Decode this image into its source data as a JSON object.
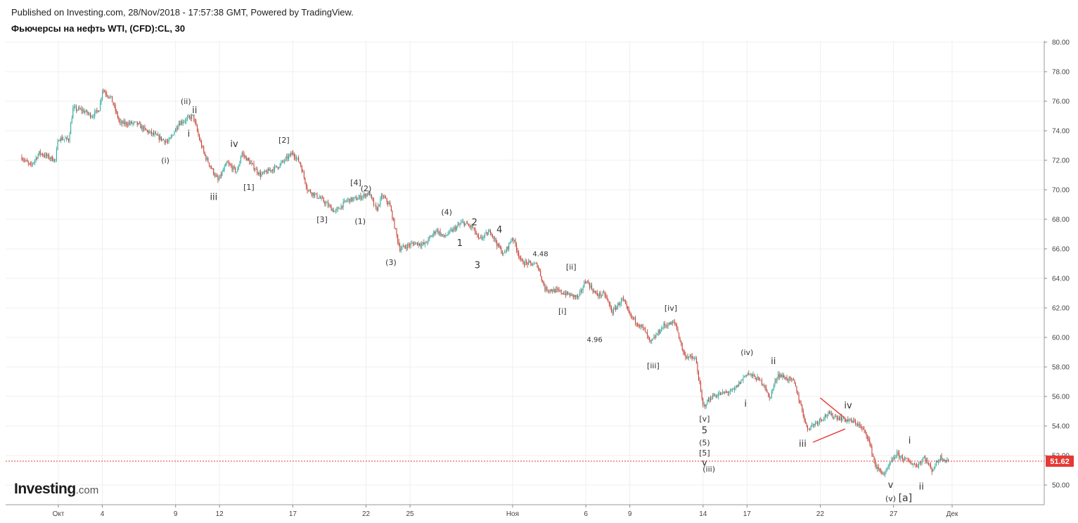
{
  "header": {
    "published": "Published on Investing.com, 28/Nov/2018 - 17:57:38 GMT, Powered by TradingView.",
    "symbol": "Фьючерсы на нефть WTI, (CFD):CL, 30"
  },
  "logo": {
    "main": "Investing",
    "suffix": ".com"
  },
  "colors": {
    "up": "#26a69a",
    "down": "#c0392b",
    "last_price": "#e53935",
    "grid": "#efefef",
    "annotation": "#e53935"
  },
  "chart_data": {
    "type": "candlestick",
    "timeframe": "30",
    "grid": true,
    "ylim": [
      49,
      80.5
    ],
    "y_ticks": [
      "50.00",
      "52.00",
      "54.00",
      "56.00",
      "58.00",
      "60.00",
      "62.00",
      "64.00",
      "66.00",
      "68.00",
      "70.00",
      "72.00",
      "74.00",
      "76.00",
      "78.00",
      "80.00"
    ],
    "x_ticks": [
      {
        "label": "Окт",
        "day": 1
      },
      {
        "label": "4",
        "day": 4
      },
      {
        "label": "9",
        "day": 9
      },
      {
        "label": "12",
        "day": 12
      },
      {
        "label": "17",
        "day": 17
      },
      {
        "label": "22",
        "day": 22
      },
      {
        "label": "25",
        "day": 25
      },
      {
        "label": "Ноя",
        "day": 32
      },
      {
        "label": "6",
        "day": 37
      },
      {
        "label": "9",
        "day": 40
      },
      {
        "label": "14",
        "day": 45
      },
      {
        "label": "17",
        "day": 48
      },
      {
        "label": "22",
        "day": 53
      },
      {
        "label": "27",
        "day": 58
      },
      {
        "label": "Дек",
        "day": 62
      }
    ],
    "last_price": "51.62",
    "last_price_value": 51.62,
    "price_path": [
      {
        "day": -1.5,
        "price": 72.2
      },
      {
        "day": -0.9,
        "price": 71.6
      },
      {
        "day": -0.3,
        "price": 72.5
      },
      {
        "day": 0.8,
        "price": 72.0
      },
      {
        "day": 1.0,
        "price": 73.5
      },
      {
        "day": 1.7,
        "price": 73.4
      },
      {
        "day": 2.0,
        "price": 75.5
      },
      {
        "day": 2.6,
        "price": 75.4
      },
      {
        "day": 3.3,
        "price": 75.0
      },
      {
        "day": 3.8,
        "price": 75.5
      },
      {
        "day": 4.0,
        "price": 76.8
      },
      {
        "day": 4.6,
        "price": 76.2
      },
      {
        "day": 5.2,
        "price": 74.5
      },
      {
        "day": 6.3,
        "price": 74.5
      },
      {
        "day": 7.0,
        "price": 74.0
      },
      {
        "day": 8.5,
        "price": 73.2
      },
      {
        "day": 9.2,
        "price": 74.5
      },
      {
        "day": 10.2,
        "price": 75.0
      },
      {
        "day": 10.6,
        "price": 73.5
      },
      {
        "day": 11.0,
        "price": 72.3
      },
      {
        "day": 11.9,
        "price": 70.6
      },
      {
        "day": 12.5,
        "price": 71.8
      },
      {
        "day": 13.2,
        "price": 71.2
      },
      {
        "day": 13.5,
        "price": 72.5
      },
      {
        "day": 14.8,
        "price": 71.0
      },
      {
        "day": 16.0,
        "price": 71.6
      },
      {
        "day": 17.0,
        "price": 72.5
      },
      {
        "day": 17.5,
        "price": 71.8
      },
      {
        "day": 18.0,
        "price": 70.0
      },
      {
        "day": 18.9,
        "price": 69.4
      },
      {
        "day": 19.9,
        "price": 68.5
      },
      {
        "day": 20.7,
        "price": 69.3
      },
      {
        "day": 21.4,
        "price": 69.4
      },
      {
        "day": 22.2,
        "price": 69.8
      },
      {
        "day": 22.7,
        "price": 68.6
      },
      {
        "day": 23.1,
        "price": 69.6
      },
      {
        "day": 23.6,
        "price": 69.0
      },
      {
        "day": 24.3,
        "price": 66.0
      },
      {
        "day": 25.3,
        "price": 66.4
      },
      {
        "day": 26.0,
        "price": 66.3
      },
      {
        "day": 26.8,
        "price": 67.3
      },
      {
        "day": 27.3,
        "price": 66.8
      },
      {
        "day": 28.6,
        "price": 67.8
      },
      {
        "day": 29.3,
        "price": 67.4
      },
      {
        "day": 29.7,
        "price": 66.6
      },
      {
        "day": 30.5,
        "price": 67.2
      },
      {
        "day": 31.0,
        "price": 66.2
      },
      {
        "day": 31.4,
        "price": 65.6
      },
      {
        "day": 32.0,
        "price": 66.8
      },
      {
        "day": 32.6,
        "price": 65.1
      },
      {
        "day": 33.7,
        "price": 64.9
      },
      {
        "day": 34.2,
        "price": 63.3
      },
      {
        "day": 35.2,
        "price": 63.1
      },
      {
        "day": 36.5,
        "price": 62.7
      },
      {
        "day": 37.0,
        "price": 63.9
      },
      {
        "day": 37.7,
        "price": 62.9
      },
      {
        "day": 38.3,
        "price": 62.9
      },
      {
        "day": 38.8,
        "price": 61.7
      },
      {
        "day": 39.5,
        "price": 62.6
      },
      {
        "day": 40.0,
        "price": 61.5
      },
      {
        "day": 41.0,
        "price": 60.5
      },
      {
        "day": 41.4,
        "price": 59.6
      },
      {
        "day": 42.3,
        "price": 60.8
      },
      {
        "day": 43.1,
        "price": 61.0
      },
      {
        "day": 43.7,
        "price": 58.8
      },
      {
        "day": 44.5,
        "price": 58.5
      },
      {
        "day": 45.0,
        "price": 55.3
      },
      {
        "day": 45.6,
        "price": 56.0
      },
      {
        "day": 46.3,
        "price": 56.2
      },
      {
        "day": 47.1,
        "price": 56.4
      },
      {
        "day": 48.0,
        "price": 57.6
      },
      {
        "day": 48.7,
        "price": 57.2
      },
      {
        "day": 49.2,
        "price": 56.8
      },
      {
        "day": 49.5,
        "price": 55.8
      },
      {
        "day": 50.1,
        "price": 57.5
      },
      {
        "day": 51.2,
        "price": 57.0
      },
      {
        "day": 51.7,
        "price": 55.3
      },
      {
        "day": 52.1,
        "price": 53.8
      },
      {
        "day": 52.8,
        "price": 54.3
      },
      {
        "day": 53.5,
        "price": 54.8
      },
      {
        "day": 54.5,
        "price": 54.5
      },
      {
        "day": 55.5,
        "price": 54.2
      },
      {
        "day": 56.2,
        "price": 53.4
      },
      {
        "day": 56.8,
        "price": 51.2
      },
      {
        "day": 57.4,
        "price": 50.7
      },
      {
        "day": 57.8,
        "price": 51.5
      },
      {
        "day": 58.2,
        "price": 52.1
      },
      {
        "day": 59.0,
        "price": 51.6
      },
      {
        "day": 59.6,
        "price": 51.3
      },
      {
        "day": 60.1,
        "price": 51.9
      },
      {
        "day": 60.6,
        "price": 51.0
      },
      {
        "day": 61.2,
        "price": 51.9
      },
      {
        "day": 61.8,
        "price": 51.6
      }
    ],
    "wave_labels": [
      {
        "text": "(ii)",
        "day": 9.7,
        "price": 75.8,
        "size": 11,
        "color": "#555"
      },
      {
        "text": "ii",
        "day": 10.3,
        "price": 75.2,
        "size": 13,
        "color": "#333"
      },
      {
        "text": "i",
        "day": 9.9,
        "price": 73.6,
        "size": 13,
        "color": "#333"
      },
      {
        "text": "(i)",
        "day": 8.3,
        "price": 71.8,
        "size": 11,
        "color": "#555"
      },
      {
        "text": "iv",
        "day": 13.0,
        "price": 72.9,
        "size": 13,
        "color": "#333"
      },
      {
        "text": "[2]",
        "day": 16.4,
        "price": 73.2,
        "size": 11,
        "color": "#333"
      },
      {
        "text": "[1]",
        "day": 14.0,
        "price": 70.0,
        "size": 11,
        "color": "#333"
      },
      {
        "text": "iii",
        "day": 11.6,
        "price": 69.3,
        "size": 13,
        "color": "#333"
      },
      {
        "text": "[4]",
        "day": 21.3,
        "price": 70.3,
        "size": 11,
        "color": "#333"
      },
      {
        "text": "(2)",
        "day": 22.0,
        "price": 69.9,
        "size": 11,
        "color": "#333"
      },
      {
        "text": "[3]",
        "day": 19.0,
        "price": 67.8,
        "size": 11,
        "color": "#333"
      },
      {
        "text": "(1)",
        "day": 21.6,
        "price": 67.7,
        "size": 11,
        "color": "#333"
      },
      {
        "text": "(3)",
        "day": 23.7,
        "price": 64.9,
        "size": 11,
        "color": "#333"
      },
      {
        "text": "(4)",
        "day": 27.5,
        "price": 68.3,
        "size": 11,
        "color": "#333"
      },
      {
        "text": "2",
        "day": 29.4,
        "price": 67.6,
        "size": 13,
        "color": "#222"
      },
      {
        "text": "1",
        "day": 28.4,
        "price": 66.2,
        "size": 13,
        "color": "#222"
      },
      {
        "text": "4",
        "day": 31.1,
        "price": 67.1,
        "size": 13,
        "color": "#222"
      },
      {
        "text": "3",
        "day": 29.6,
        "price": 64.7,
        "size": 13,
        "color": "#222"
      },
      {
        "text": "4.48",
        "day": 33.9,
        "price": 65.5,
        "size": 10,
        "color": "#222"
      },
      {
        "text": "[ii]",
        "day": 36.0,
        "price": 64.6,
        "size": 11,
        "color": "#333"
      },
      {
        "text": "[i]",
        "day": 35.4,
        "price": 61.6,
        "size": 11,
        "color": "#333"
      },
      {
        "text": "4.96",
        "day": 37.6,
        "price": 59.7,
        "size": 10,
        "color": "#222"
      },
      {
        "text": "[iv]",
        "day": 42.8,
        "price": 61.8,
        "size": 11,
        "color": "#333"
      },
      {
        "text": "[iii]",
        "day": 41.6,
        "price": 57.9,
        "size": 11,
        "color": "#333"
      },
      {
        "text": "[v]",
        "day": 45.1,
        "price": 54.3,
        "size": 11,
        "color": "#333"
      },
      {
        "text": "5",
        "day": 45.1,
        "price": 53.5,
        "size": 13,
        "color": "#222"
      },
      {
        "text": "(5)",
        "day": 45.1,
        "price": 52.7,
        "size": 11,
        "color": "#333"
      },
      {
        "text": "[5]",
        "day": 45.1,
        "price": 52.0,
        "size": 11,
        "color": "#333"
      },
      {
        "text": "v",
        "day": 45.1,
        "price": 51.3,
        "size": 13,
        "color": "#333"
      },
      {
        "text": "(iii)",
        "day": 45.4,
        "price": 50.9,
        "size": 11,
        "color": "#555"
      },
      {
        "text": "(iv)",
        "day": 48.0,
        "price": 58.8,
        "size": 11,
        "color": "#555"
      },
      {
        "text": "ii",
        "day": 49.8,
        "price": 58.2,
        "size": 13,
        "color": "#333"
      },
      {
        "text": "i",
        "day": 47.9,
        "price": 55.3,
        "size": 13,
        "color": "#333"
      },
      {
        "text": "iii",
        "day": 51.8,
        "price": 52.6,
        "size": 13,
        "color": "#333"
      },
      {
        "text": "iv",
        "day": 54.9,
        "price": 55.2,
        "size": 13,
        "color": "#333"
      },
      {
        "text": "i",
        "day": 59.1,
        "price": 52.8,
        "size": 13,
        "color": "#333"
      },
      {
        "text": "v",
        "day": 57.8,
        "price": 49.8,
        "size": 13,
        "color": "#333"
      },
      {
        "text": "ii",
        "day": 59.9,
        "price": 49.7,
        "size": 13,
        "color": "#333"
      },
      {
        "text": "(v)",
        "day": 57.8,
        "price": 48.9,
        "size": 11,
        "color": "#555"
      },
      {
        "text": "[a]",
        "day": 58.8,
        "price": 48.9,
        "size": 14,
        "color": "#333"
      }
    ],
    "annotation_lines": [
      {
        "from": {
          "day": 53.0,
          "price": 55.9
        },
        "to": {
          "day": 54.6,
          "price": 54.6
        }
      },
      {
        "from": {
          "day": 52.5,
          "price": 52.9
        },
        "to": {
          "day": 54.7,
          "price": 53.8
        }
      }
    ]
  }
}
